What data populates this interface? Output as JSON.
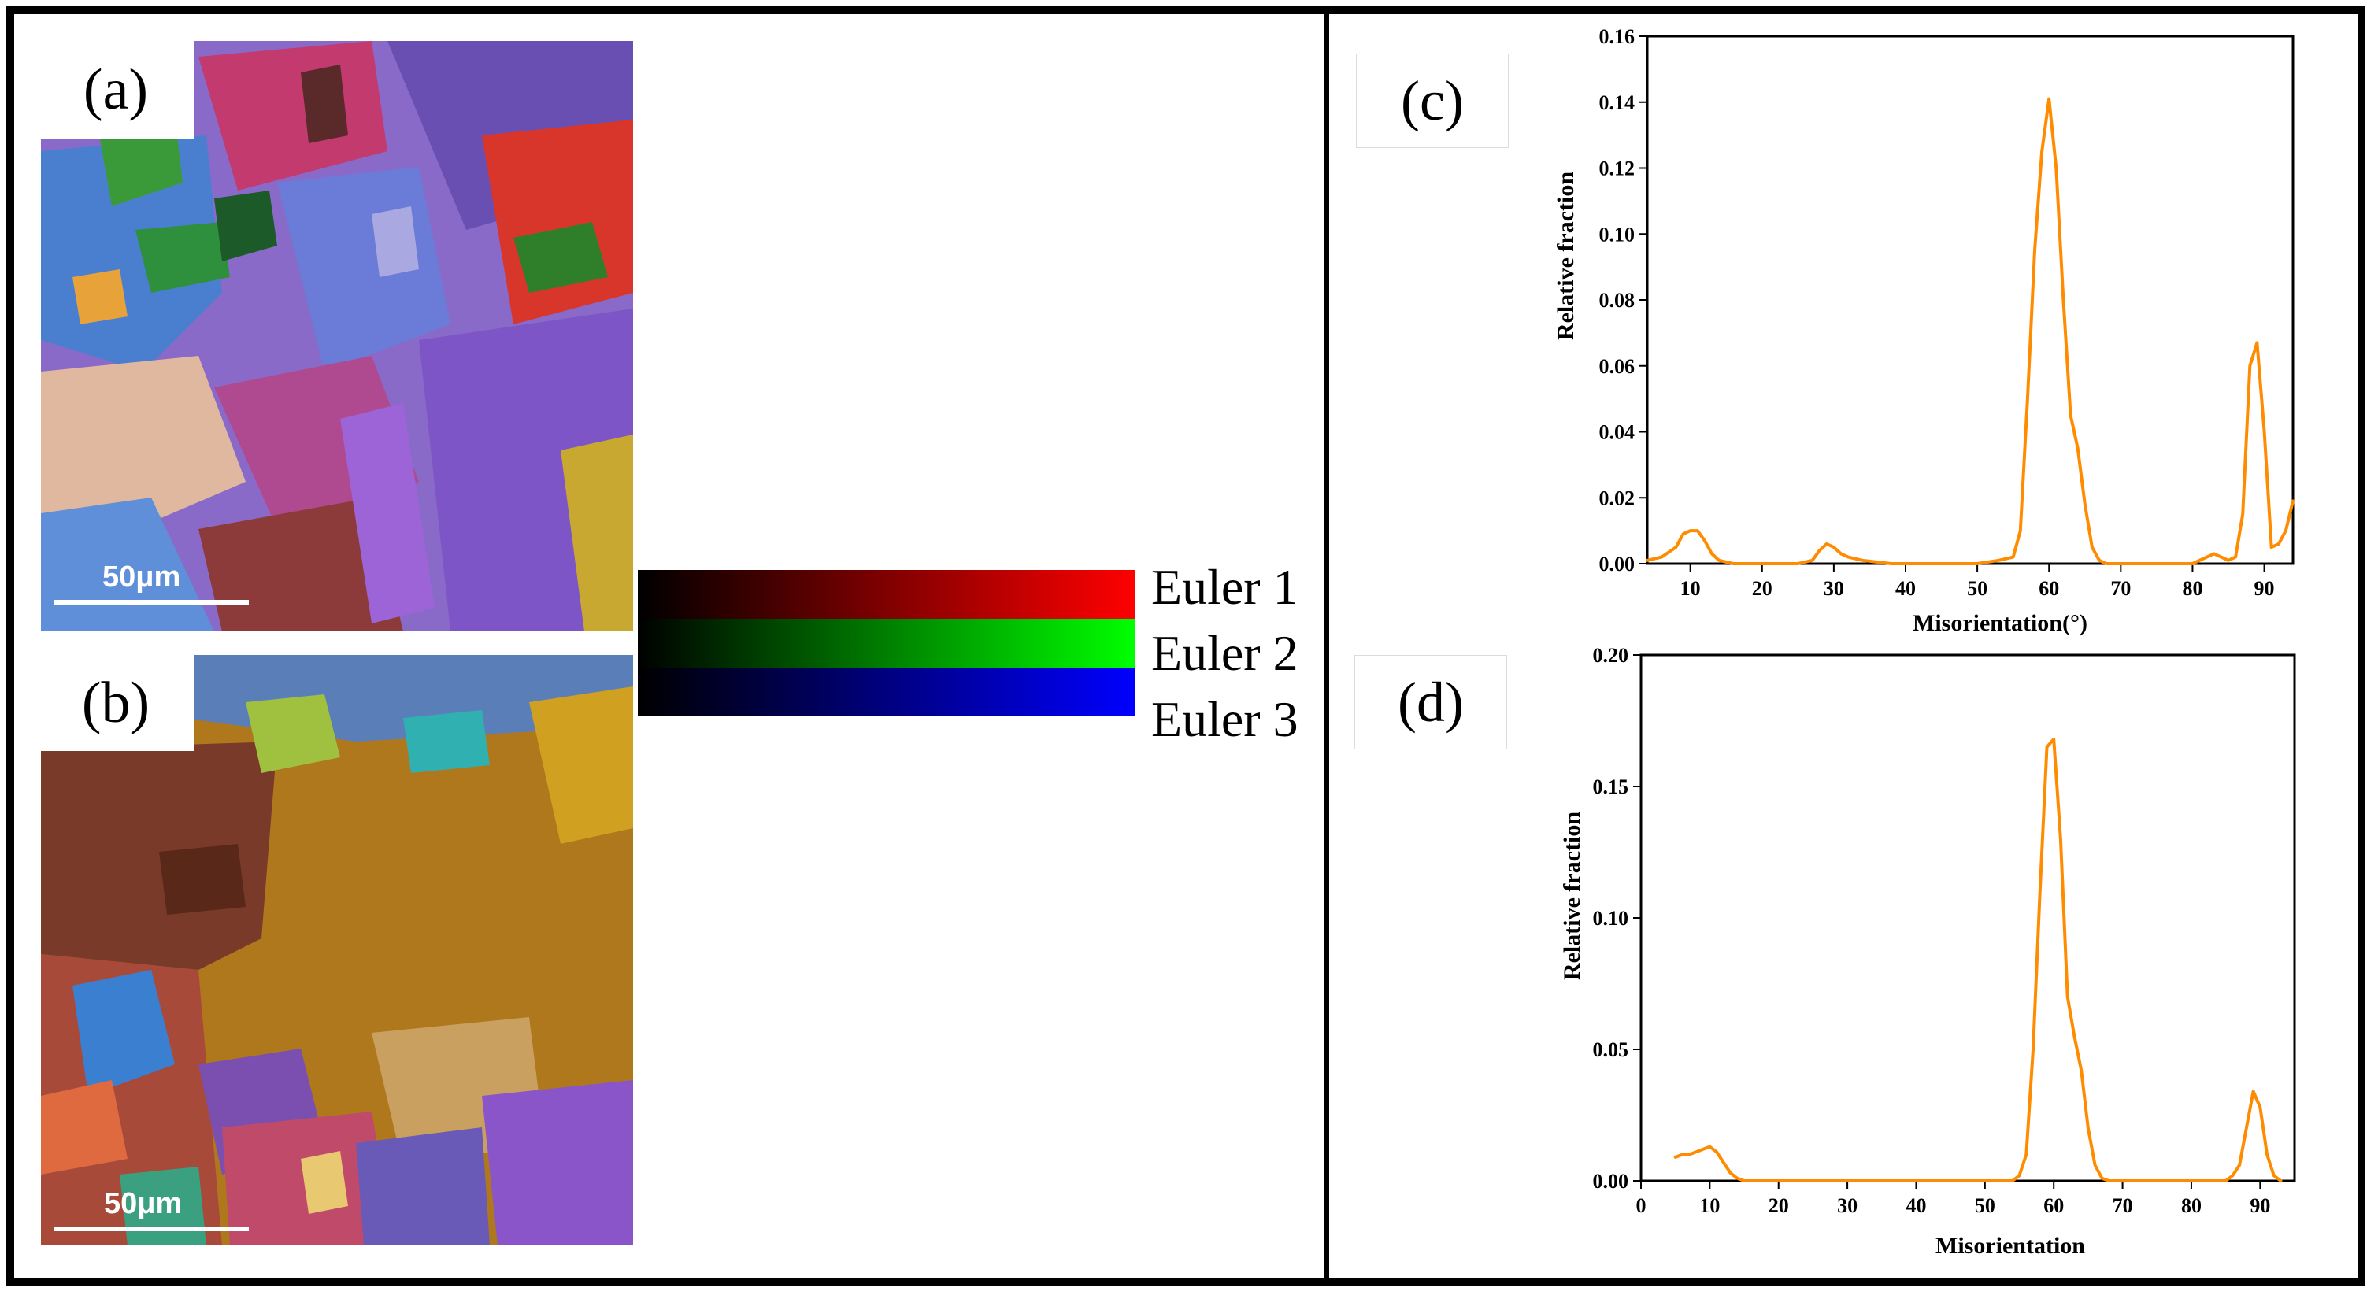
{
  "panels": {
    "a": {
      "label": "(a)",
      "scale": "50μm"
    },
    "b": {
      "label": "(b)",
      "scale": "50μm"
    },
    "c": {
      "label": "(c)"
    },
    "d": {
      "label": "(d)"
    }
  },
  "euler_legend": {
    "items": [
      {
        "label": "Euler 1",
        "color": "#ff0000"
      },
      {
        "label": "Euler 2",
        "color": "#00ff00"
      },
      {
        "label": "Euler 3",
        "color": "#0000ff"
      }
    ]
  },
  "chart_data": [
    {
      "id": "c",
      "type": "line",
      "xlabel": "Misorientation(°)",
      "ylabel": "Relative fraction",
      "xlim": [
        4,
        94
      ],
      "ylim": [
        0,
        0.16
      ],
      "xticks": [
        10,
        20,
        30,
        40,
        50,
        60,
        70,
        80,
        90
      ],
      "yticks": [
        0.0,
        0.02,
        0.04,
        0.06,
        0.08,
        0.1,
        0.12,
        0.14,
        0.16
      ],
      "ytick_labels": [
        "0.00",
        "0.02",
        "0.04",
        "0.06",
        "0.08",
        "0.10",
        "0.12",
        "0.14",
        "0.16"
      ],
      "line_color": "#ff8c00",
      "series": [
        {
          "name": "misorientation",
          "x": [
            4,
            6,
            8,
            9,
            10,
            11,
            12,
            13,
            14,
            16,
            20,
            25,
            27,
            28,
            29,
            30,
            31,
            32,
            34,
            38,
            42,
            46,
            50,
            53,
            55,
            56,
            57,
            58,
            59,
            60,
            61,
            62,
            63,
            64,
            65,
            66,
            67,
            68,
            70,
            75,
            80,
            82,
            83,
            84,
            85,
            86,
            87,
            88,
            89,
            90,
            91,
            92,
            93,
            94
          ],
          "y": [
            0.001,
            0.002,
            0.005,
            0.009,
            0.01,
            0.01,
            0.007,
            0.003,
            0.001,
            0.0,
            0.0,
            0.0,
            0.001,
            0.004,
            0.006,
            0.005,
            0.003,
            0.002,
            0.001,
            0.0,
            0.0,
            0.0,
            0.0,
            0.001,
            0.002,
            0.01,
            0.05,
            0.095,
            0.125,
            0.141,
            0.12,
            0.08,
            0.045,
            0.035,
            0.018,
            0.005,
            0.001,
            0.0,
            0.0,
            0.0,
            0.0,
            0.002,
            0.003,
            0.002,
            0.001,
            0.002,
            0.015,
            0.06,
            0.067,
            0.04,
            0.005,
            0.006,
            0.01,
            0.019
          ]
        }
      ]
    },
    {
      "id": "d",
      "type": "line",
      "xlabel": "Misorientation",
      "ylabel": "Relative fraction",
      "xlim": [
        0,
        95
      ],
      "ylim": [
        0,
        0.2
      ],
      "xticks": [
        0,
        10,
        20,
        30,
        40,
        50,
        60,
        70,
        80,
        90
      ],
      "yticks": [
        0.0,
        0.05,
        0.1,
        0.15,
        0.2
      ],
      "ytick_labels": [
        "0.00",
        "0.05",
        "0.10",
        "0.15",
        "0.20"
      ],
      "line_color": "#ff8c00",
      "series": [
        {
          "name": "misorientation",
          "x": [
            5,
            6,
            7,
            8,
            9,
            10,
            11,
            12,
            13,
            14,
            15,
            20,
            30,
            40,
            50,
            54,
            55,
            56,
            57,
            58,
            59,
            60,
            61,
            62,
            63,
            64,
            65,
            66,
            67,
            68,
            70,
            80,
            85,
            86,
            87,
            88,
            89,
            90,
            91,
            92,
            93
          ],
          "y": [
            0.009,
            0.01,
            0.01,
            0.011,
            0.012,
            0.013,
            0.011,
            0.007,
            0.003,
            0.001,
            0.0,
            0.0,
            0.0,
            0.0,
            0.0,
            0.0,
            0.002,
            0.01,
            0.05,
            0.11,
            0.165,
            0.168,
            0.13,
            0.07,
            0.055,
            0.042,
            0.02,
            0.006,
            0.001,
            0.0,
            0.0,
            0.0,
            0.0,
            0.002,
            0.006,
            0.02,
            0.034,
            0.028,
            0.01,
            0.002,
            0.0
          ]
        }
      ]
    }
  ]
}
